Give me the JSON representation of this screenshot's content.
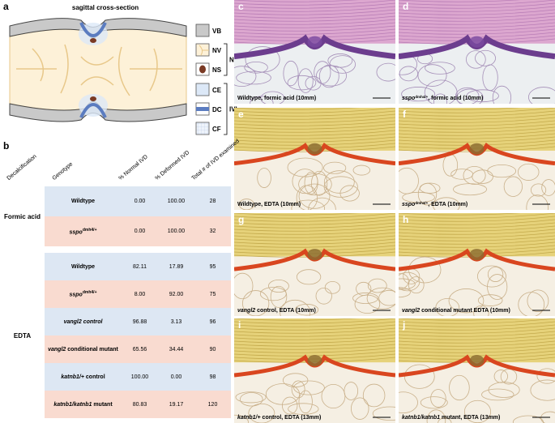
{
  "panel_a": {
    "label": "a",
    "title": "sagittal cross-section",
    "legend": [
      "VB",
      "NV",
      "NS",
      "CE",
      "DC",
      "CF"
    ],
    "groups": [
      "NP",
      "IVL"
    ]
  },
  "panel_b": {
    "label": "b",
    "headers": [
      "Decalcification",
      "Genotype",
      "% Normal IVD",
      "% Deformed IVD",
      "Total # of IVD examined"
    ],
    "groups": [
      {
        "decalcification": "Formic acid",
        "rows": [
          {
            "genotype": [
              {
                "text": "Wildtype"
              }
            ],
            "normal": "0.00",
            "deformed": "100.00",
            "total": "28"
          },
          {
            "genotype": [
              {
                "text": "sspo",
                "format": "italic"
              },
              {
                "text": "dmh4/+",
                "format": "sup"
              }
            ],
            "normal": "0.00",
            "deformed": "100.00",
            "total": "32"
          }
        ]
      },
      {
        "decalcification": "EDTA",
        "rows": [
          {
            "genotype": [
              {
                "text": "Wildtype"
              }
            ],
            "normal": "82.11",
            "deformed": "17.89",
            "total": "95"
          },
          {
            "genotype": [
              {
                "text": "sspo",
                "format": "italic"
              },
              {
                "text": "dmh4/+",
                "format": "sup"
              }
            ],
            "normal": "8.00",
            "deformed": "92.00",
            "total": "75"
          },
          {
            "genotype": [
              {
                "text": "vangl2 control",
                "format": "italic"
              }
            ],
            "normal": "96.88",
            "deformed": "3.13",
            "total": "96"
          },
          {
            "genotype": [
              {
                "text": "vangl2",
                "format": "italic"
              },
              {
                "text": " conditional mutant"
              }
            ],
            "normal": "65.56",
            "deformed": "34.44",
            "total": "90"
          },
          {
            "genotype": [
              {
                "text": "katnb1/+",
                "format": "italic"
              },
              {
                "text": " control"
              }
            ],
            "normal": "100.00",
            "deformed": "0.00",
            "total": "98"
          },
          {
            "genotype": [
              {
                "text": "katnb1/katnb1",
                "format": "italic"
              },
              {
                "text": " mutant"
              }
            ],
            "normal": "80.83",
            "deformed": "19.17",
            "total": "120"
          }
        ]
      }
    ]
  },
  "images": [
    {
      "label": "c",
      "caption": [
        {
          "text": "Wildtype, formic acid (10mm)"
        }
      ]
    },
    {
      "label": "d",
      "caption": [
        {
          "text": "sspo",
          "format": "italic"
        },
        {
          "text": "dmh4/+",
          "format": "sup"
        },
        {
          "text": ", formic acid (10mm)"
        }
      ]
    },
    {
      "label": "e",
      "caption": [
        {
          "text": "Wildtype, EDTA (10mm)"
        }
      ]
    },
    {
      "label": "f",
      "caption": [
        {
          "text": "sspo",
          "format": "italic"
        },
        {
          "text": "dmh4/+",
          "format": "sup"
        },
        {
          "text": ", EDTA (10mm)"
        }
      ]
    },
    {
      "label": "g",
      "caption": [
        {
          "text": "vangl2",
          "format": "italic"
        },
        {
          "text": " control, EDTA (10mm)"
        }
      ]
    },
    {
      "label": "h",
      "caption": [
        {
          "text": "vangl2",
          "format": "italic"
        },
        {
          "text": " conditional mutant EDTA (10mm)"
        }
      ]
    },
    {
      "label": "i",
      "caption": [
        {
          "text": "katnb1/+",
          "format": "italic"
        },
        {
          "text": " control, EDTA (13mm)"
        }
      ]
    },
    {
      "label": "j",
      "caption": [
        {
          "text": "katnb1/katnb1",
          "format": "italic"
        },
        {
          "text": " mutant, EDTA (13mm)"
        }
      ]
    }
  ]
}
